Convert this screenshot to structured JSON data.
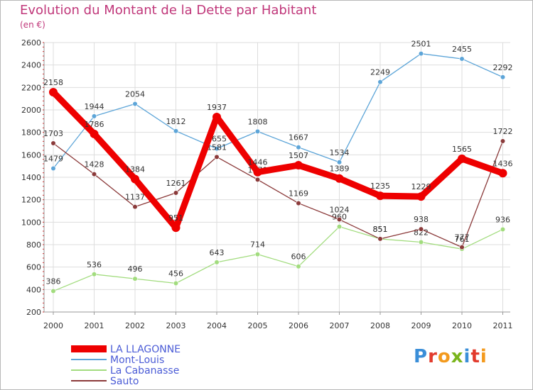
{
  "title": "Evolution du Montant de la Dette par Habitant",
  "subtitle": "(en €)",
  "logo": {
    "text": "Proxiti",
    "colors": [
      "#3a8ed8",
      "#e23b2d",
      "#f39a1e",
      "#7ab51d",
      "#3a8ed8",
      "#e23b2d",
      "#f39a1e"
    ]
  },
  "chart_data": {
    "type": "line",
    "x": [
      "2000",
      "2001",
      "2002",
      "2003",
      "2004",
      "2005",
      "2006",
      "2007",
      "2008",
      "2009",
      "2010",
      "2011"
    ],
    "ylim": [
      200,
      2600
    ],
    "yticks": [
      200,
      400,
      600,
      800,
      1000,
      1200,
      1400,
      1600,
      1800,
      2000,
      2200,
      2400,
      2600
    ],
    "grid": true,
    "legend_position": "bottom-left",
    "series": [
      {
        "name": "LA LLAGONNE",
        "color": "#ee0000",
        "width": 9,
        "values": [
          2158,
          1786,
          1384,
          951,
          1937,
          1446,
          1507,
          1389,
          1235,
          1229,
          1565,
          1436
        ]
      },
      {
        "name": "Mont-Louis",
        "color": "#5da5d8",
        "width": 1.3,
        "values": [
          1479,
          1944,
          2054,
          1812,
          1655,
          1808,
          1667,
          1534,
          2249,
          2501,
          2455,
          2292
        ]
      },
      {
        "name": "La Cabanasse",
        "color": "#a2dc7e",
        "width": 1.3,
        "values": [
          386,
          536,
          496,
          456,
          643,
          714,
          606,
          960,
          851,
          822,
          761,
          936
        ]
      },
      {
        "name": "Sauto",
        "color": "#8b3a3a",
        "width": 1.3,
        "values": [
          1703,
          1428,
          1137,
          1261,
          1581,
          1379,
          1169,
          1024,
          851,
          938,
          777,
          1722
        ]
      }
    ]
  }
}
